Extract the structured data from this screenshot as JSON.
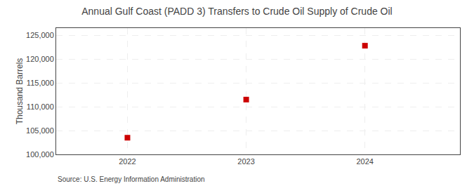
{
  "chart_data": {
    "type": "scatter",
    "title": "Annual Gulf Coast (PADD 3) Transfers to Crude Oil Supply of Crude Oil",
    "y_label": "Thousand Barrels",
    "annotations": [
      "Source: U.S. Energy Information Administration"
    ],
    "x": [
      2022,
      2023,
      2024
    ],
    "values": [
      103500,
      111500,
      122800
    ],
    "color": "#cc0000",
    "marker": "square",
    "xlim": [
      2021.4,
      2024.8
    ],
    "xticks": [
      2022,
      2023,
      2024
    ],
    "ylim": [
      100000,
      126500
    ],
    "yticks": [
      {
        "value": 100000,
        "label": "100,000"
      },
      {
        "value": 105000,
        "label": "105,000"
      },
      {
        "value": 110000,
        "label": "110,000"
      },
      {
        "value": 115000,
        "label": "115,000"
      },
      {
        "value": 120000,
        "label": "120,000"
      },
      {
        "value": 125000,
        "label": "125,000"
      }
    ],
    "grid": true
  }
}
